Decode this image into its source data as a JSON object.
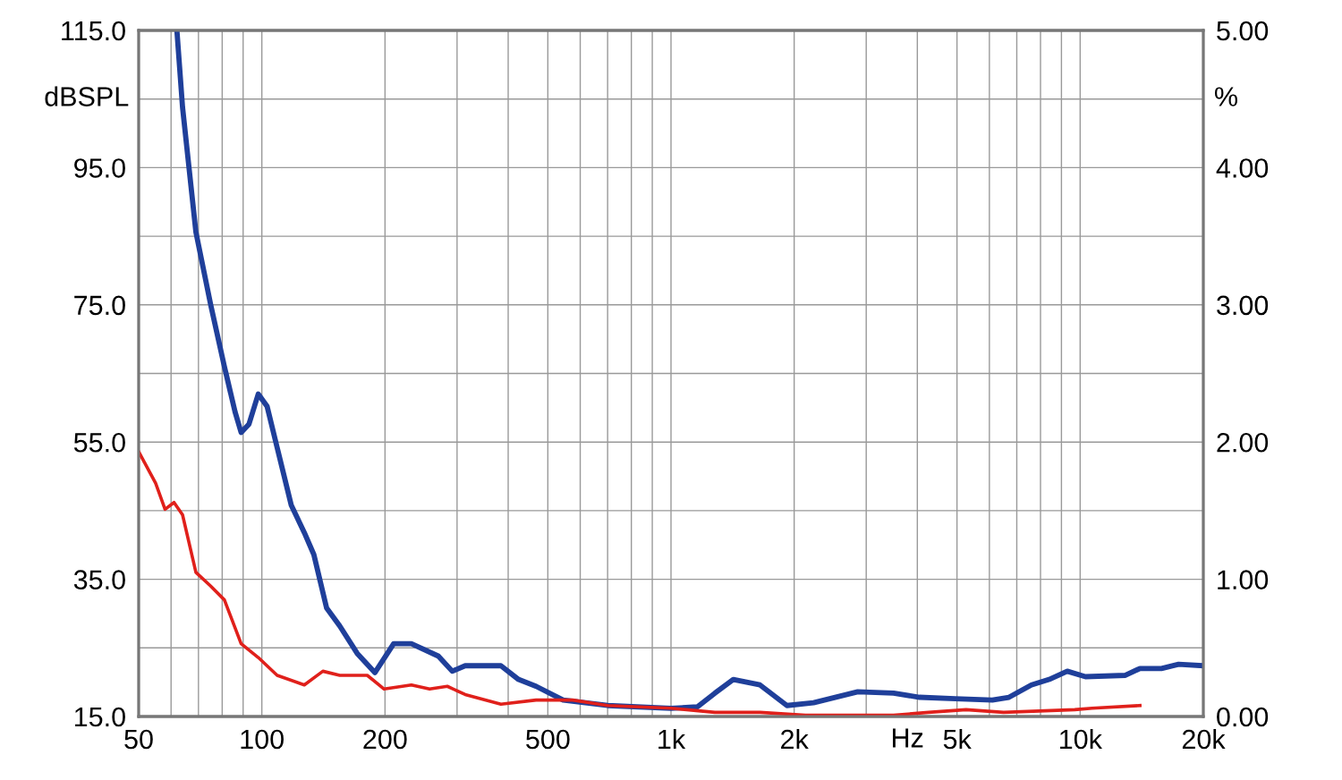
{
  "chart_data": {
    "type": "line",
    "xlabel": "Hz",
    "ylabel": "dBSPL",
    "y2label": "%",
    "log": "x",
    "grid": true,
    "xlim": [
      50,
      20000
    ],
    "xticks": [
      50,
      {
        "value": 60,
        "label": null
      },
      {
        "value": 70,
        "label": null
      },
      {
        "value": 80,
        "label": null
      },
      {
        "value": 90,
        "label": null
      },
      100,
      200,
      {
        "value": 300,
        "label": null
      },
      {
        "value": 400,
        "label": null
      },
      500,
      {
        "value": 600,
        "label": null
      },
      {
        "value": 700,
        "label": null
      },
      {
        "value": 800,
        "label": null
      },
      {
        "value": 900,
        "label": null
      },
      {
        "value": 1000,
        "label": "1k"
      },
      {
        "value": 2000,
        "label": "2k"
      },
      {
        "value": 3000,
        "label": null
      },
      {
        "value": 4000,
        "label": null
      },
      {
        "value": 5000,
        "label": "5k"
      },
      {
        "value": 6000,
        "label": null
      },
      {
        "value": 7000,
        "label": null
      },
      {
        "value": 8000,
        "label": null
      },
      {
        "value": 9000,
        "label": null
      },
      {
        "value": 10000,
        "label": "10k"
      },
      {
        "value": 20000,
        "label": "20k"
      }
    ],
    "ylim": [
      15,
      115
    ],
    "yticks": [
      {
        "value": 15,
        "label": "15.0"
      },
      {
        "value": 25,
        "label": null
      },
      {
        "value": 35,
        "label": "35.0"
      },
      {
        "value": 45,
        "label": null
      },
      {
        "value": 55,
        "label": "55.0"
      },
      {
        "value": 65,
        "label": null
      },
      {
        "value": 75,
        "label": "75.0"
      },
      {
        "value": 85,
        "label": null
      },
      {
        "value": 95,
        "label": "95.0"
      },
      {
        "value": 105,
        "label": null
      },
      {
        "value": 115,
        "label": "115.0"
      }
    ],
    "y2lim": [
      0,
      5
    ],
    "y2ticks": [
      {
        "value": 0,
        "label": "0.00"
      },
      {
        "value": 0.5,
        "label": null
      },
      {
        "value": 1,
        "label": "1.00"
      },
      {
        "value": 1.5,
        "label": null
      },
      {
        "value": 2,
        "label": "2.00"
      },
      {
        "value": 2.5,
        "label": null
      },
      {
        "value": 3,
        "label": "3.00"
      },
      {
        "value": 3.5,
        "label": null
      },
      {
        "value": 4,
        "label": "4.00"
      },
      {
        "value": 4.5,
        "label": null
      },
      {
        "value": 5,
        "label": "5.00"
      }
    ],
    "series": [
      {
        "color": "#1f3f9a",
        "axis": "y2",
        "x": [
          62,
          64,
          69,
          75,
          81,
          86,
          89,
          93,
          98,
          103,
          109,
          118,
          127,
          134,
          144,
          155,
          171,
          189,
          210,
          232,
          270,
          292,
          314,
          384,
          424,
          468,
          545,
          700,
          1000,
          1160,
          1280,
          1420,
          1650,
          1920,
          2230,
          2860,
          3500,
          4050,
          4950,
          6100,
          6700,
          7600,
          8400,
          9300,
          10300,
          12900,
          14000,
          15800,
          17400,
          20000
        ],
        "values": [
          5.0,
          4.44,
          3.53,
          3.0,
          2.55,
          2.22,
          2.07,
          2.13,
          2.35,
          2.26,
          1.96,
          1.54,
          1.34,
          1.18,
          0.79,
          0.66,
          0.46,
          0.32,
          0.53,
          0.53,
          0.44,
          0.33,
          0.37,
          0.37,
          0.27,
          0.22,
          0.12,
          0.08,
          0.06,
          0.07,
          0.17,
          0.27,
          0.23,
          0.08,
          0.1,
          0.18,
          0.17,
          0.14,
          0.13,
          0.12,
          0.14,
          0.23,
          0.27,
          0.33,
          0.29,
          0.3,
          0.35,
          0.35,
          0.38,
          0.37
        ]
      },
      {
        "color": "#e0201b",
        "axis": "y2",
        "x": [
          50,
          55,
          58,
          61,
          64,
          69,
          75,
          81,
          89,
          98,
          109,
          127,
          141,
          155,
          181,
          199,
          232,
          257,
          284,
          314,
          384,
          468,
          575,
          700,
          1000,
          1280,
          1650,
          2130,
          3500,
          4260,
          5260,
          6500,
          9700,
          10700,
          14000
        ],
        "values": [
          1.93,
          1.7,
          1.51,
          1.56,
          1.47,
          1.05,
          0.95,
          0.85,
          0.53,
          0.43,
          0.3,
          0.23,
          0.33,
          0.3,
          0.3,
          0.2,
          0.23,
          0.2,
          0.22,
          0.16,
          0.09,
          0.12,
          0.12,
          0.08,
          0.06,
          0.03,
          0.03,
          0.01,
          0.01,
          0.03,
          0.05,
          0.03,
          0.05,
          0.06,
          0.08
        ]
      }
    ]
  }
}
